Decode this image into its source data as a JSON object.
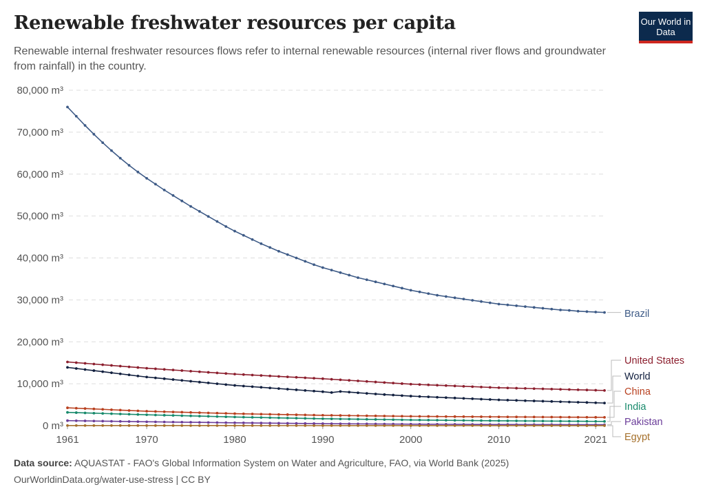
{
  "header": {
    "title": "Renewable freshwater resources per capita",
    "subtitle": "Renewable internal freshwater resources flows refer to internal renewable resources (internal river flows and groundwater from rainfall) in the country.",
    "logo_text": "Our World in Data"
  },
  "footer": {
    "source_label": "Data source:",
    "source_text": "AQUASTAT - FAO's Global Information System on Water and Agriculture, FAO, via World Bank (2025)",
    "url_license": "OurWorldinData.org/water-use-stress | CC BY"
  },
  "chart_data": {
    "type": "line",
    "title": "Renewable freshwater resources per capita",
    "unit": "m³",
    "xlim": [
      1961,
      2022
    ],
    "ylim": [
      0,
      80000
    ],
    "grid": "horizontal-dashed",
    "legend_placement": "right (line-end labels)",
    "x_ticks": [
      "1961",
      "1970",
      "1980",
      "1990",
      "2000",
      "2010",
      "2021"
    ],
    "y_ticks": [
      "0 m³",
      "10,000 m³",
      "20,000 m³",
      "30,000 m³",
      "40,000 m³",
      "50,000 m³",
      "60,000 m³",
      "70,000 m³",
      "80,000 m³"
    ],
    "x_start": 1961,
    "series": [
      {
        "name": "Brazil",
        "color": "#3d5a86",
        "values": [
          76000,
          73800,
          71600,
          69500,
          67500,
          65600,
          63800,
          62100,
          60500,
          59000,
          57600,
          56200,
          54900,
          53600,
          52300,
          51100,
          49900,
          48700,
          47500,
          46400,
          45400,
          44400,
          43400,
          42500,
          41600,
          40800,
          40000,
          39200,
          38400,
          37700,
          37100,
          36500,
          35900,
          35300,
          34800,
          34300,
          33800,
          33300,
          32800,
          32300,
          31900,
          31500,
          31100,
          30800,
          30500,
          30200,
          29900,
          29600,
          29300,
          29000,
          28800,
          28600,
          28400,
          28200,
          28000,
          27800,
          27600,
          27500,
          27300,
          27200,
          27100,
          27000
        ]
      },
      {
        "name": "United States",
        "color": "#8c1f2e",
        "values": [
          15200,
          15030,
          14870,
          14700,
          14530,
          14370,
          14200,
          14030,
          13870,
          13700,
          13560,
          13420,
          13280,
          13140,
          13000,
          12860,
          12720,
          12580,
          12440,
          12300,
          12190,
          12080,
          11970,
          11860,
          11750,
          11640,
          11530,
          11420,
          11310,
          11200,
          11070,
          10940,
          10810,
          10680,
          10550,
          10420,
          10290,
          10160,
          10030,
          9900,
          9815,
          9730,
          9645,
          9560,
          9475,
          9390,
          9305,
          9220,
          9135,
          9050,
          9000,
          8940,
          8890,
          8830,
          8780,
          8730,
          8670,
          8620,
          8560,
          8510,
          8450,
          8400
        ]
      },
      {
        "name": "World",
        "color": "#12203f",
        "values": [
          13900,
          13640,
          13390,
          13130,
          12880,
          12620,
          12360,
          12110,
          11850,
          11600,
          11400,
          11200,
          11000,
          10800,
          10600,
          10400,
          10200,
          10000,
          9800,
          9600,
          9450,
          9300,
          9150,
          9000,
          8850,
          8700,
          8550,
          8400,
          8250,
          8100,
          7900,
          8150,
          8000,
          7850,
          7700,
          7560,
          7420,
          7300,
          7170,
          7050,
          6960,
          6870,
          6780,
          6690,
          6600,
          6510,
          6420,
          6330,
          6240,
          6150,
          6090,
          6030,
          5960,
          5900,
          5840,
          5780,
          5710,
          5650,
          5590,
          5530,
          5460,
          5400
        ]
      },
      {
        "name": "China",
        "color": "#b8401f",
        "values": [
          4260,
          4170,
          4080,
          3990,
          3900,
          3800,
          3710,
          3620,
          3530,
          3440,
          3383,
          3326,
          3269,
          3212,
          3155,
          3098,
          3041,
          2984,
          2927,
          2870,
          2831,
          2792,
          2753,
          2714,
          2675,
          2636,
          2597,
          2558,
          2519,
          2480,
          2455,
          2430,
          2405,
          2380,
          2355,
          2330,
          2305,
          2280,
          2255,
          2230,
          2217,
          2204,
          2191,
          2178,
          2165,
          2152,
          2139,
          2126,
          2113,
          2100,
          2091,
          2082,
          2073,
          2064,
          2055,
          2046,
          2036,
          2027,
          2018,
          2009,
          2000,
          1990
        ]
      },
      {
        "name": "India",
        "color": "#188a6c",
        "values": [
          3170,
          3107,
          3043,
          2980,
          2917,
          2853,
          2790,
          2727,
          2663,
          2600,
          2547,
          2494,
          2441,
          2388,
          2335,
          2282,
          2229,
          2176,
          2123,
          2070,
          2029,
          1988,
          1947,
          1906,
          1865,
          1824,
          1783,
          1742,
          1701,
          1660,
          1631,
          1602,
          1573,
          1544,
          1515,
          1486,
          1457,
          1428,
          1399,
          1370,
          1350,
          1329,
          1309,
          1288,
          1268,
          1247,
          1227,
          1206,
          1186,
          1165,
          1153,
          1140,
          1128,
          1115,
          1103,
          1090,
          1078,
          1065,
          1053,
          1040,
          1028,
          1015
        ]
      },
      {
        "name": "Pakistan",
        "color": "#6b3d99",
        "values": [
          1200,
          1170,
          1140,
          1110,
          1080,
          1050,
          1020,
          990,
          960,
          930,
          906,
          882,
          858,
          834,
          810,
          786,
          762,
          738,
          714,
          690,
          669,
          648,
          627,
          606,
          585,
          564,
          543,
          522,
          501,
          480,
          468,
          456,
          444,
          432,
          420,
          408,
          396,
          384,
          372,
          360,
          352,
          344,
          336,
          328,
          320,
          312,
          304,
          296,
          288,
          280,
          276,
          272,
          268,
          263,
          259,
          255,
          251,
          247,
          242,
          238,
          234,
          230
        ]
      },
      {
        "name": "Egypt",
        "color": "#a5702c",
        "values": [
          36,
          35,
          34,
          33,
          32,
          32,
          31,
          30,
          30,
          29,
          28,
          28,
          27,
          27,
          26,
          25,
          25,
          24,
          24,
          23,
          23,
          22,
          22,
          21,
          21,
          20,
          20,
          19,
          19,
          18,
          18,
          17,
          17,
          16,
          16,
          16,
          15,
          15,
          14,
          14,
          14,
          13,
          13,
          13,
          12,
          12,
          12,
          11,
          11,
          11,
          11,
          11,
          10,
          10,
          10,
          10,
          10,
          9,
          9,
          9,
          9,
          9
        ]
      }
    ]
  }
}
